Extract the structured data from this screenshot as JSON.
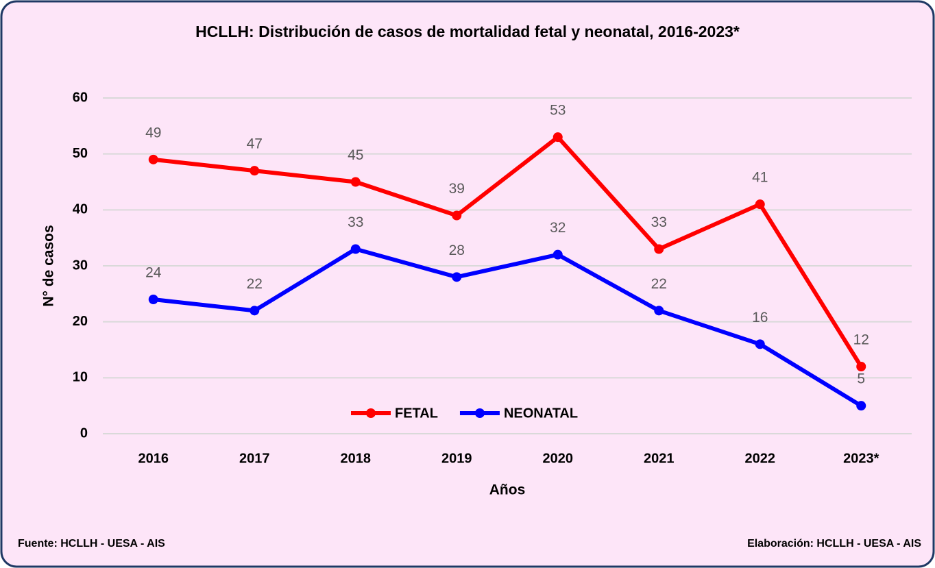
{
  "chart_data": {
    "type": "line",
    "title": "HCLLH: Distribución de casos de mortalidad fetal y neonatal, 2016-2023*",
    "x_label": "Años",
    "y_label": "N° de casos",
    "categories": [
      "2016",
      "2017",
      "2018",
      "2019",
      "2020",
      "2021",
      "2022",
      "2023*"
    ],
    "series": [
      {
        "name": "FETAL",
        "color": "#ff0000",
        "values": [
          49,
          47,
          45,
          39,
          53,
          33,
          41,
          12
        ]
      },
      {
        "name": "NEONATAL",
        "color": "#0000ff",
        "values": [
          24,
          22,
          33,
          28,
          32,
          22,
          16,
          5
        ]
      }
    ],
    "ylim": [
      0,
      60
    ],
    "yticks": [
      0,
      10,
      20,
      30,
      40,
      50,
      60
    ],
    "grid": true,
    "legend": "bottom",
    "source": "Fuente:  HCLLH - UESA - AIS",
    "credit": "Elaboración: HCLLH - UESA - AIS"
  }
}
